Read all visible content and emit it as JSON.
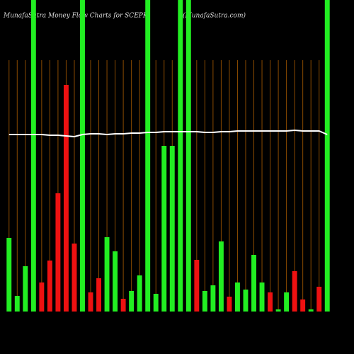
{
  "chart_data": {
    "type": "bar",
    "title": "MunafaSutra  Money Flow Charts for SCEPK",
    "subtitle": "(MunafaSutra.com)",
    "ylim": [
      0,
      440
    ],
    "values": [
      104,
      22,
      64,
      440,
      41,
      72,
      167,
      320,
      96,
      440,
      27,
      47,
      105,
      85,
      18,
      29,
      51,
      440,
      25,
      234,
      234,
      440,
      440,
      73,
      29,
      37,
      99,
      21,
      41,
      31,
      80,
      41,
      27,
      3,
      27,
      57,
      17,
      3,
      35,
      440
    ],
    "colors": [
      "#22ee22",
      "#22ee22",
      "#22ee22",
      "#22ee22",
      "#ee1111",
      "#ee1111",
      "#ee1111",
      "#ee1111",
      "#ee1111",
      "#22ee22",
      "#ee1111",
      "#ee1111",
      "#22ee22",
      "#22ee22",
      "#ee1111",
      "#22ee22",
      "#22ee22",
      "#22ee22",
      "#22ee22",
      "#22ee22",
      "#22ee22",
      "#22ee22",
      "#22ee22",
      "#ee1111",
      "#22ee22",
      "#22ee22",
      "#22ee22",
      "#ee1111",
      "#22ee22",
      "#22ee22",
      "#22ee22",
      "#22ee22",
      "#ee1111",
      "#22ee22",
      "#22ee22",
      "#ee1111",
      "#ee1111",
      "#22ee22",
      "#ee1111",
      "#22ee22"
    ],
    "line_values": [
      250,
      250,
      250,
      250,
      250,
      249,
      249,
      248,
      247,
      250,
      251,
      251,
      250,
      251,
      251,
      252,
      252,
      253,
      253,
      254,
      254,
      254,
      254,
      254,
      253,
      253,
      254,
      254,
      255,
      255,
      255,
      255,
      255,
      255,
      255,
      256,
      255,
      255,
      255,
      250
    ],
    "line_color": "#ffffff"
  }
}
